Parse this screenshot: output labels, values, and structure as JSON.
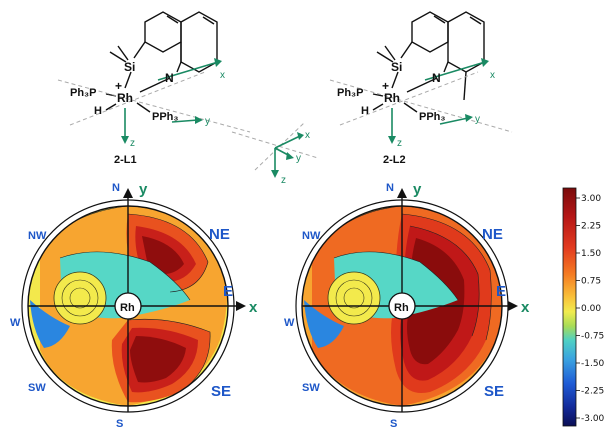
{
  "left_panel": {
    "compound_label": "2-L1",
    "atoms": {
      "si": "Si",
      "n": "N",
      "rh": "Rh",
      "charge": "+",
      "ph3p": "Ph₃P",
      "h": "H",
      "pph3": "PPh₃"
    },
    "axes": {
      "x": "x",
      "y": "y",
      "z": "z"
    },
    "map": {
      "center": "Rh",
      "directions": {
        "n": "N",
        "ne": "NE",
        "e": "E",
        "se": "SE",
        "s": "S",
        "sw": "SW",
        "w": "W",
        "nw": "NW"
      },
      "axis_x": "x",
      "axis_y": "y"
    }
  },
  "right_panel": {
    "compound_label": "2-L2",
    "atoms": {
      "si": "Si",
      "n": "N",
      "rh": "Rh",
      "charge": "+",
      "ph3p": "Ph₃P",
      "h": "H",
      "pph3": "PPh₃"
    },
    "axes": {
      "x": "x",
      "y": "y",
      "z": "z"
    },
    "map": {
      "center": "Rh",
      "directions": {
        "n": "N",
        "ne": "NE",
        "e": "E",
        "se": "SE",
        "s": "S",
        "sw": "SW",
        "w": "W",
        "nw": "NW"
      },
      "axis_x": "x",
      "axis_y": "y"
    }
  },
  "center_axes": {
    "x": "x",
    "y": "y",
    "z": "z"
  },
  "colorbar": {
    "ticks": [
      "3.00",
      "2.25",
      "1.50",
      "0.75",
      "0.00",
      "-0.75",
      "-1.50",
      "-2.25",
      "-3.00"
    ],
    "colors": [
      "#7a0b0b",
      "#b51616",
      "#e23a1f",
      "#f47a22",
      "#f9c23a",
      "#f1ec4e",
      "#a8dc56",
      "#4fd0c4",
      "#3aa2e0",
      "#1f5cd6",
      "#132a9a",
      "#0b0f55"
    ]
  }
}
